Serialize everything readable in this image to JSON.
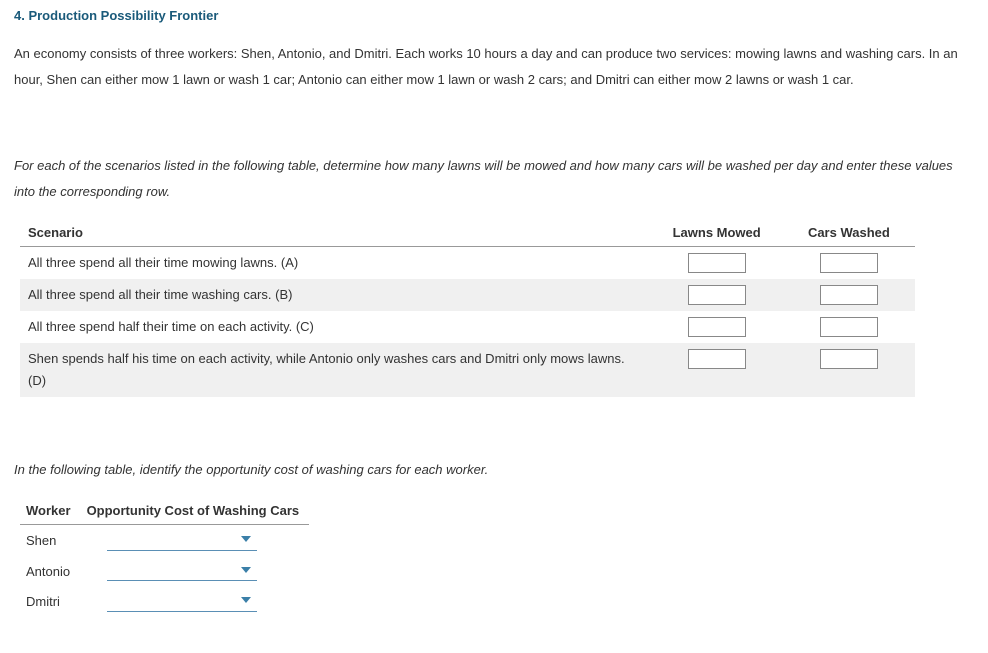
{
  "title": "4. Production Possibility Frontier",
  "paragraph": "An economy consists of three workers: Shen, Antonio, and Dmitri. Each works 10 hours a day and can produce two services: mowing lawns and washing cars. In an hour, Shen can either mow 1 lawn or wash 1 car; Antonio can either mow 1 lawn or wash 2 cars; and Dmitri can either mow 2 lawns or wash 1 car.",
  "instruction1": "For each of the scenarios listed in the following table, determine how many lawns will be mowed and how many cars will be washed per day and enter these values into the corresponding row.",
  "scenario_table": {
    "headers": {
      "scenario": "Scenario",
      "lawns": "Lawns Mowed",
      "cars": "Cars Washed"
    },
    "rows": [
      {
        "label": "All three spend all their time mowing lawns. (A)",
        "alt": false
      },
      {
        "label": "All three spend all their time washing cars. (B)",
        "alt": true
      },
      {
        "label": "All three spend half their time on each activity. (C)",
        "alt": false
      },
      {
        "label": "Shen spends half his time on each activity, while Antonio only washes cars and Dmitri only mows lawns. (D)",
        "alt": true
      }
    ]
  },
  "instruction2": "In the following table, identify the opportunity cost of washing cars for each worker.",
  "oc_table": {
    "headers": {
      "worker": "Worker",
      "oc": "Opportunity Cost of Washing Cars"
    },
    "workers": [
      "Shen",
      "Antonio",
      "Dmitri"
    ]
  },
  "colors": {
    "title": "#1a5a7a",
    "chevron": "#3b7fa8",
    "alt_row": "#f0f0f0"
  }
}
